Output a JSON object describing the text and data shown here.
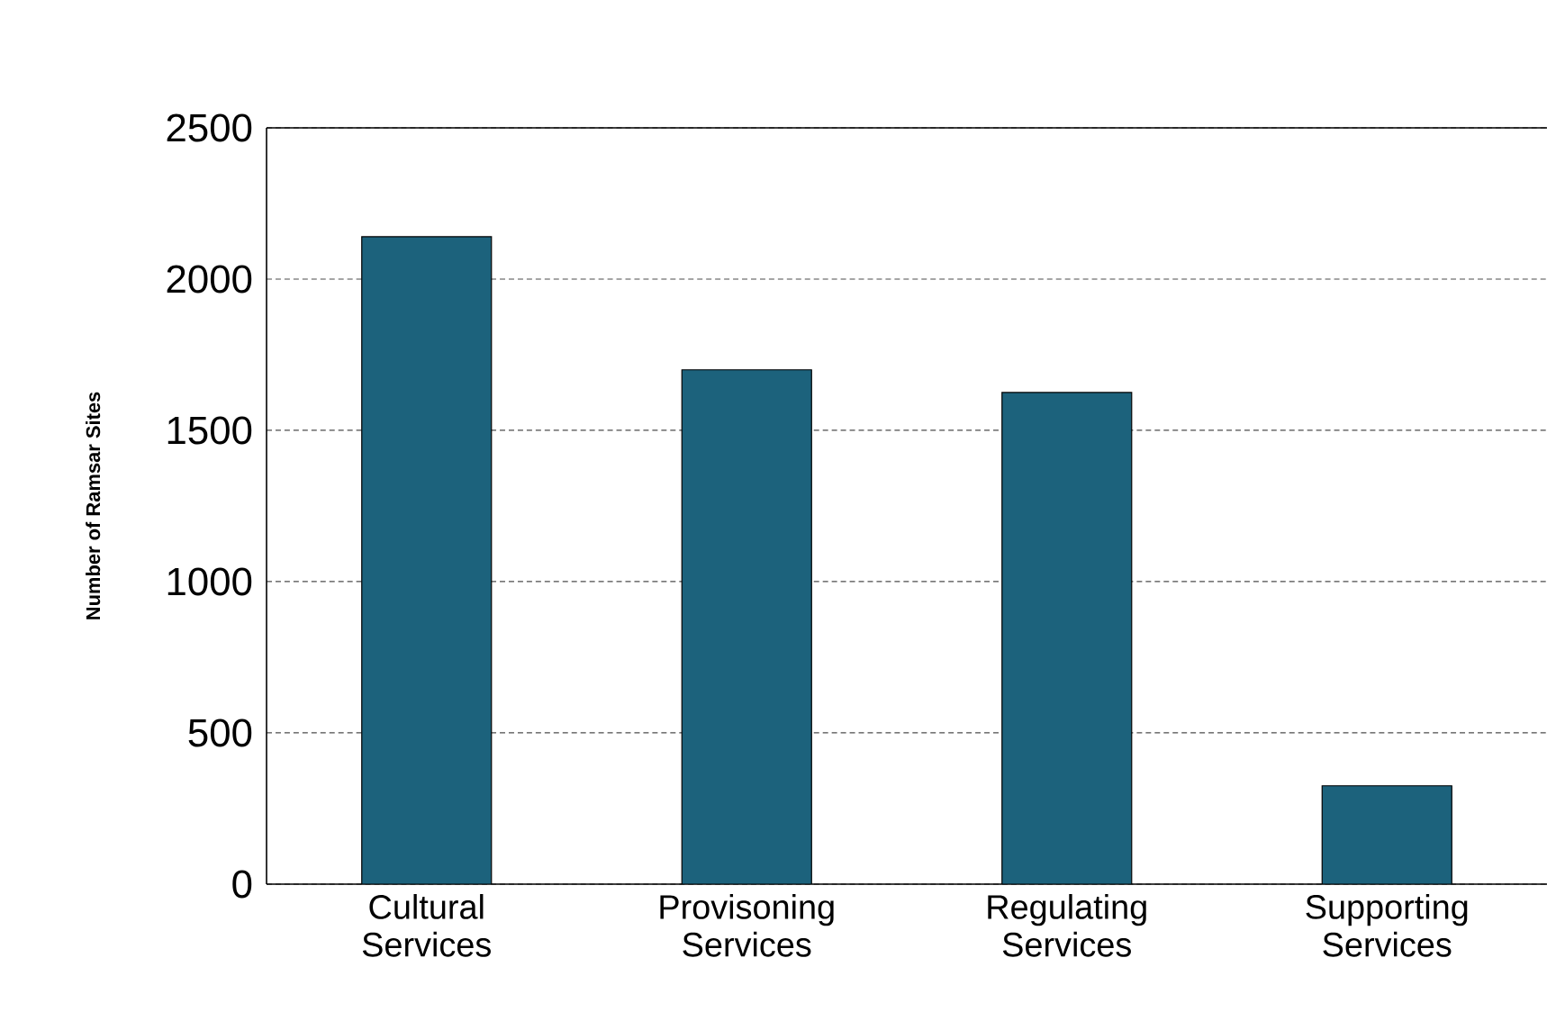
{
  "chart_data": {
    "type": "bar",
    "ylabel": "Number of Ramsar Sites",
    "categories": [
      "Cultural Services",
      "Provisoning Services",
      "Regulating Services",
      "Supporting Services"
    ],
    "values": [
      2140,
      1700,
      1625,
      325
    ],
    "color": "#1c627c",
    "ylim": [
      0,
      2500
    ],
    "yticks": [
      0,
      500,
      1000,
      1500,
      2000,
      2500
    ],
    "grid": "y"
  }
}
